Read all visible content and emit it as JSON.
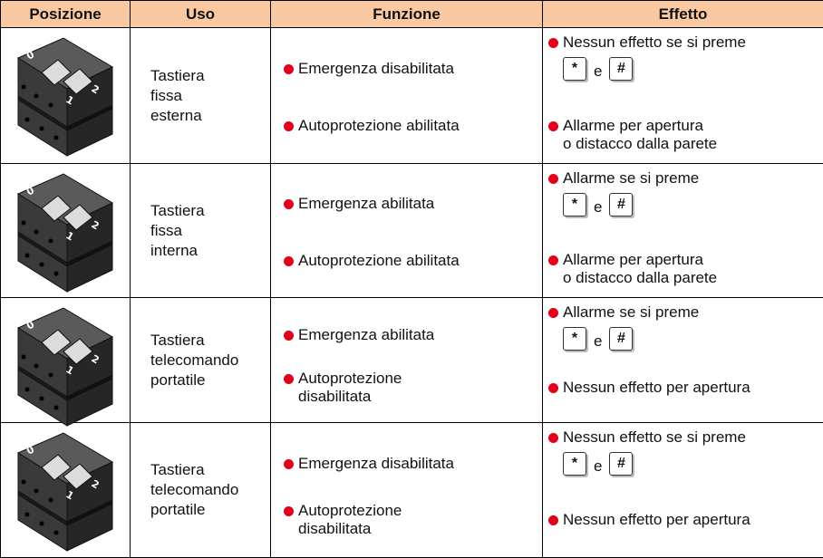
{
  "table": {
    "header": [
      "Posizione",
      "Uso",
      "Funzione",
      "Effetto"
    ],
    "switch_labels": [
      "0",
      "1",
      "2"
    ],
    "rows": [
      {
        "uso": [
          "Tastiera",
          "fissa",
          "esterna"
        ],
        "funzione": [
          [
            "Emergenza disabilitata"
          ],
          [
            "Autoprotezione abilitata"
          ]
        ],
        "effetto": [
          {
            "lines": [
              "Nessun effetto se si preme"
            ],
            "keys": [
              "*",
              "#"
            ],
            "conjunction": "e"
          },
          {
            "lines": [
              "Allarme per apertura",
              "o distacco dalla parete"
            ]
          }
        ]
      },
      {
        "uso": [
          "Tastiera",
          "fissa",
          "interna"
        ],
        "funzione": [
          [
            "Emergenza abilitata"
          ],
          [
            "Autoprotezione abilitata"
          ]
        ],
        "effetto": [
          {
            "lines": [
              "Allarme se si preme"
            ],
            "keys": [
              "*",
              "#"
            ],
            "conjunction": "e"
          },
          {
            "lines": [
              "Allarme per apertura",
              "o distacco dalla parete"
            ]
          }
        ]
      },
      {
        "uso": [
          "Tastiera",
          "telecomando",
          "portatile"
        ],
        "funzione": [
          [
            "Emergenza abilitata"
          ],
          [
            "Autoprotezione",
            "disabilitata"
          ]
        ],
        "effetto": [
          {
            "lines": [
              "Allarme se si preme"
            ],
            "keys": [
              "*",
              "#"
            ],
            "conjunction": "e"
          },
          {
            "lines": [
              "Nessun effetto per apertura"
            ]
          }
        ]
      },
      {
        "uso": [
          "Tastiera",
          "telecomando",
          "portatile"
        ],
        "funzione": [
          [
            "Emergenza disabilitata"
          ],
          [
            "Autoprotezione",
            "disabilitata"
          ]
        ],
        "effetto": [
          {
            "lines": [
              "Nessun effetto se si preme"
            ],
            "keys": [
              "*",
              "#"
            ],
            "conjunction": "e"
          },
          {
            "lines": [
              "Nessun effetto per apertura"
            ]
          }
        ]
      }
    ]
  }
}
